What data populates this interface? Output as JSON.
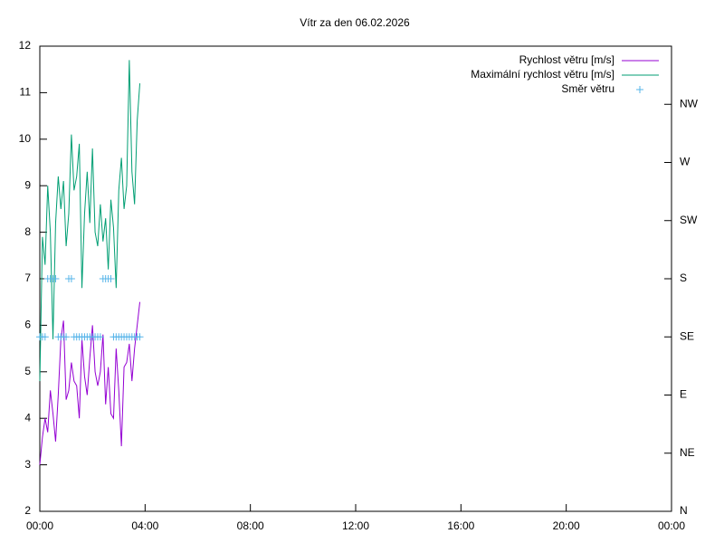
{
  "chart_data": {
    "type": "line",
    "title": "Vítr za den 06.02.2026",
    "x": [
      0,
      0.1,
      0.2,
      0.3,
      0.4,
      0.5,
      0.6,
      0.7,
      0.8,
      0.9,
      1.0,
      1.1,
      1.2,
      1.3,
      1.4,
      1.5,
      1.6,
      1.7,
      1.8,
      1.9,
      2.0,
      2.1,
      2.2,
      2.3,
      2.4,
      2.5,
      2.6,
      2.7,
      2.8,
      2.9,
      3.0,
      3.1,
      3.2,
      3.3,
      3.4,
      3.5,
      3.6,
      3.7,
      3.8
    ],
    "series": [
      {
        "name": "Rychlost větru [m/s]",
        "color": "#9400d3",
        "style": "line",
        "values": [
          3.0,
          3.6,
          4.0,
          3.7,
          4.6,
          4.1,
          3.5,
          4.5,
          5.7,
          6.1,
          4.4,
          4.6,
          5.2,
          4.8,
          4.7,
          4.0,
          5.7,
          4.9,
          4.5,
          5.3,
          6.0,
          5.0,
          4.7,
          5.0,
          5.8,
          4.3,
          5.1,
          4.1,
          4.0,
          5.5,
          4.6,
          3.4,
          5.1,
          5.2,
          5.6,
          4.8,
          5.5,
          6.0,
          6.5
        ]
      },
      {
        "name": "Maximální rychlost větru [m/s]",
        "color": "#009e73",
        "style": "line",
        "values": [
          4.8,
          7.9,
          7.3,
          9.0,
          8.0,
          5.7,
          8.2,
          9.2,
          8.5,
          9.1,
          7.7,
          8.4,
          10.1,
          8.9,
          9.2,
          9.9,
          6.8,
          8.4,
          9.3,
          8.2,
          9.8,
          8.0,
          7.7,
          8.6,
          7.8,
          8.3,
          7.2,
          8.7,
          8.1,
          6.8,
          8.9,
          9.6,
          8.5,
          9.0,
          11.7,
          9.3,
          8.6,
          10.4,
          11.2
        ]
      },
      {
        "name": "Směr větru",
        "color": "#56b4e9",
        "style": "points",
        "axis": "y2",
        "values": [
          135,
          135,
          135,
          180,
          180,
          180,
          180,
          135,
          135,
          135,
          135,
          180,
          180,
          135,
          135,
          135,
          135,
          135,
          135,
          135,
          135,
          135,
          135,
          135,
          180,
          180,
          180,
          180,
          135,
          135,
          135,
          135,
          135,
          135,
          135,
          135,
          135,
          135,
          135
        ]
      }
    ],
    "xlim": [
      0,
      24
    ],
    "xticks": [
      {
        "value": 0,
        "label": "00:00"
      },
      {
        "value": 4,
        "label": "04:00"
      },
      {
        "value": 8,
        "label": "08:00"
      },
      {
        "value": 12,
        "label": "12:00"
      },
      {
        "value": 16,
        "label": "16:00"
      },
      {
        "value": 20,
        "label": "20:00"
      },
      {
        "value": 24,
        "label": "00:00"
      }
    ],
    "ylim": [
      2,
      12
    ],
    "yticks": [
      2,
      3,
      4,
      5,
      6,
      7,
      8,
      9,
      10,
      11,
      12
    ],
    "y2lim": [
      0,
      360
    ],
    "y2ticks": [
      {
        "value": 0,
        "label": "N"
      },
      {
        "value": 45,
        "label": "NE"
      },
      {
        "value": 90,
        "label": "E"
      },
      {
        "value": 135,
        "label": "SE"
      },
      {
        "value": 180,
        "label": "S"
      },
      {
        "value": 225,
        "label": "SW"
      },
      {
        "value": 270,
        "label": "W"
      },
      {
        "value": 315,
        "label": "NW"
      }
    ],
    "legend": "top-right"
  }
}
